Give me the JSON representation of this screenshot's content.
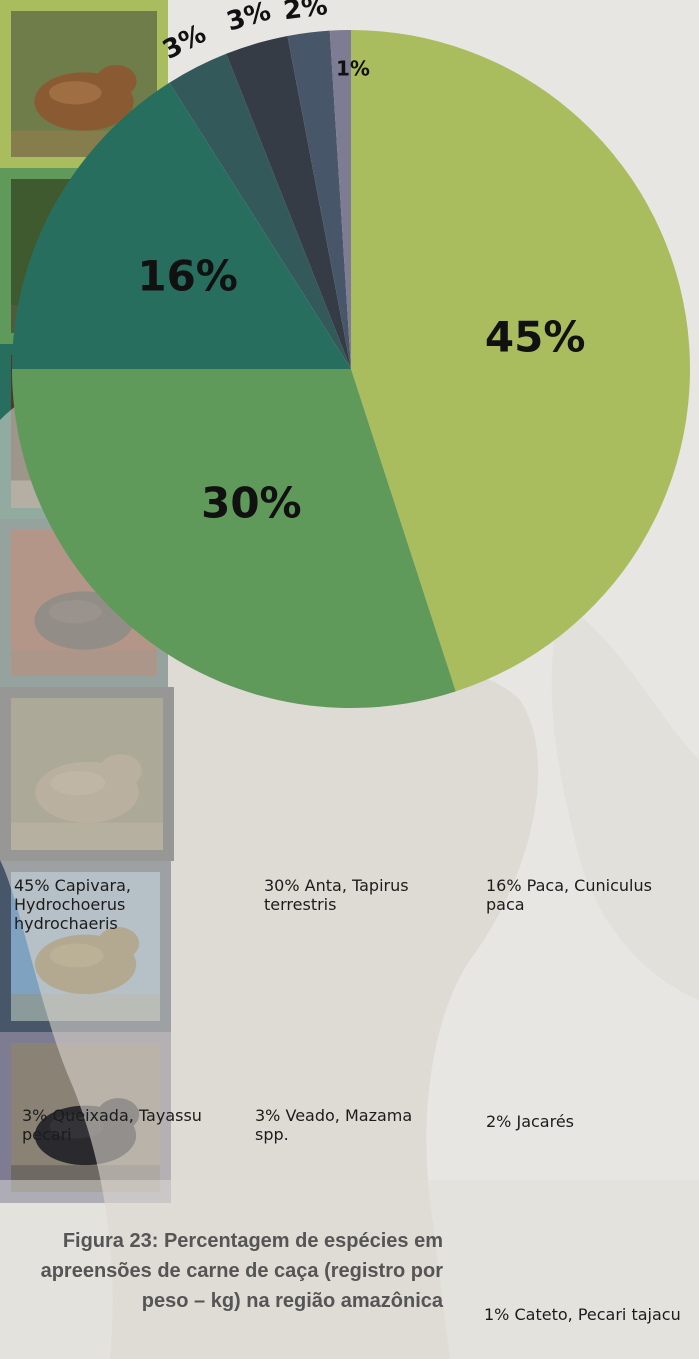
{
  "chart_data": {
    "type": "pie",
    "slices": [
      {
        "label": "45%",
        "value": 45,
        "color": "#a9bc5e"
      },
      {
        "label": "30%",
        "value": 30,
        "color": "#609a5b"
      },
      {
        "label": "16%",
        "value": 16,
        "color": "#286e5f"
      },
      {
        "label": "3%",
        "value": 3,
        "color": "#33595a"
      },
      {
        "label": "3%",
        "value": 3,
        "color": "#363c46"
      },
      {
        "label": "2%",
        "value": 2,
        "color": "#48566a"
      },
      {
        "label": "1%",
        "value": 1,
        "color": "#7d7c92"
      }
    ]
  },
  "legend": [
    {
      "pct": "45%",
      "name": "Capivara,",
      "sci": "Hydrochoerus hydrochaeris",
      "ring": "#a9bc5e",
      "icon": "capybara-photo"
    },
    {
      "pct": "30%",
      "name": "Anta,",
      "sci": "Tapirus terrestris",
      "ring": "#609a5b",
      "icon": "tapir-photo"
    },
    {
      "pct": "16%",
      "name": "Paca,",
      "sci": "Cuniculus paca",
      "ring": "#286e5f",
      "icon": "paca-photo"
    },
    {
      "pct": "3%",
      "name": "Queixada,",
      "sci": "Tayassu pecari",
      "ring": "#33595a",
      "icon": "white-lipped-peccary-photo"
    },
    {
      "pct": "3%",
      "name": "Veado,",
      "sci": "Mazama spp.",
      "ring": "#363c46",
      "icon": "deer-photo"
    },
    {
      "pct": "2%",
      "name": "",
      "sci": "Jacarés",
      "ring": "#48566a",
      "icon": "caiman-photo"
    },
    {
      "pct": "1%",
      "name": "Cateto,",
      "sci": "Pecari tajacu",
      "ring": "#7d7c92",
      "icon": "collared-peccary-photo"
    }
  ],
  "caption": "Figura 23: Percentagem de espécies em apreensões de carne de caça (registro por peso – kg) na região amazônica"
}
